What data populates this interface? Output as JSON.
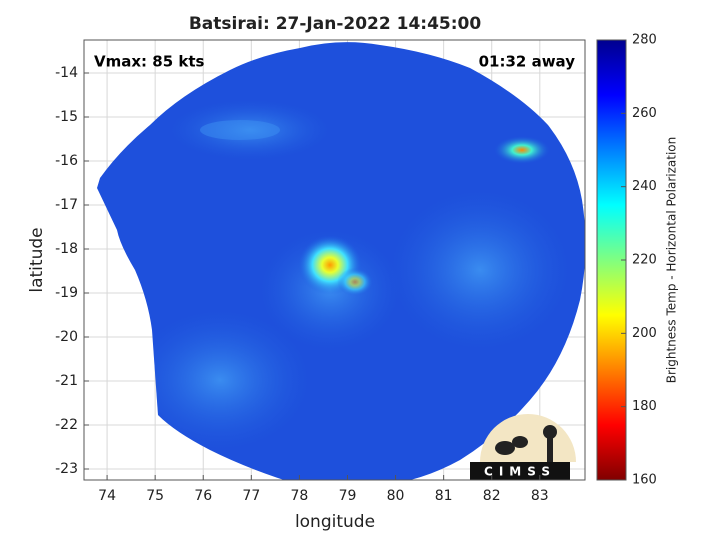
{
  "chart_data": {
    "type": "image",
    "title": "Batsirai: 27-Jan-2022 14:45:00",
    "xlabel": "longitude",
    "ylabel": "latitude",
    "xlim": [
      73.52,
      83.94
    ],
    "ylim": [
      -23.25,
      -13.25
    ],
    "xticks": [
      74,
      75,
      76,
      77,
      78,
      79,
      80,
      81,
      82,
      83
    ],
    "yticks": [
      -14,
      -15,
      -16,
      -17,
      -18,
      -19,
      -20,
      -21,
      -22,
      -23
    ],
    "grid": true,
    "annotations": [
      "Vmax: 85 kts",
      "01:32 away"
    ],
    "logo_text": "CIMSS",
    "colorbar": {
      "label": "Brightness Temp - Horizontal Polarization",
      "lim": [
        160,
        280
      ],
      "ticks": [
        160,
        180,
        200,
        220,
        240,
        260,
        280
      ],
      "colormap": [
        "#800000",
        "#ff0000",
        "#ff8000",
        "#ffff00",
        "#80ff80",
        "#00ffff",
        "#0080ff",
        "#0000ff",
        "#00008f"
      ]
    }
  }
}
